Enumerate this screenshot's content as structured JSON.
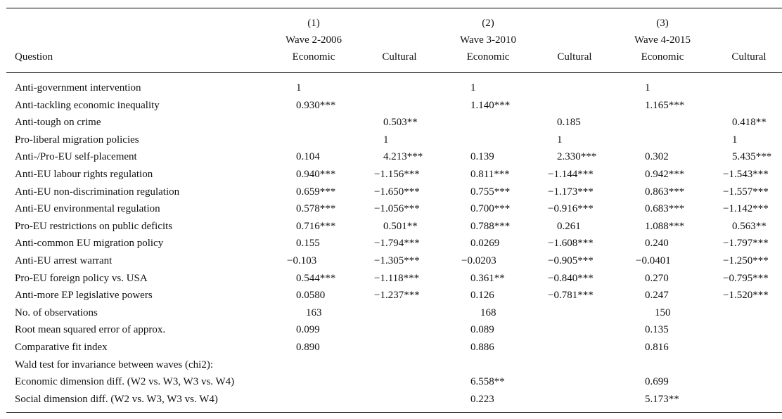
{
  "table": {
    "header": {
      "question_label": "Question",
      "groups": [
        {
          "number": "(1)",
          "wave": "Wave 2-2006"
        },
        {
          "number": "(2)",
          "wave": "Wave 3-2010"
        },
        {
          "number": "(3)",
          "wave": "Wave 4-2015"
        }
      ],
      "subcolumns": [
        "Economic",
        "Cultural",
        "Economic",
        "Cultural",
        "Economic",
        "Cultural"
      ]
    },
    "rows": [
      {
        "label": "Anti-government intervention",
        "cells": [
          "1",
          "",
          "1",
          "",
          "1",
          ""
        ]
      },
      {
        "label": "Anti-tackling economic inequality",
        "cells": [
          "0.930***",
          "",
          "1.140***",
          "",
          "1.165***",
          ""
        ]
      },
      {
        "label": "Anti-tough on crime",
        "cells": [
          "",
          "0.503**",
          "",
          "0.185",
          "",
          "0.418**"
        ]
      },
      {
        "label": "Pro-liberal migration policies",
        "cells": [
          "",
          "1",
          "",
          "1",
          "",
          "1"
        ]
      },
      {
        "label": "Anti-/Pro-EU self-placement",
        "cells": [
          "0.104",
          "4.213***",
          "0.139",
          "2.330***",
          "0.302",
          "5.435***"
        ]
      },
      {
        "label": "Anti-EU labour rights regulation",
        "cells": [
          "0.940***",
          "−1.156***",
          "0.811***",
          "−1.144***",
          "0.942***",
          "−1.543***"
        ]
      },
      {
        "label": "Anti-EU non-discrimination regulation",
        "cells": [
          "0.659***",
          "−1.650***",
          "0.755***",
          "−1.173***",
          "0.863***",
          "−1.557***"
        ]
      },
      {
        "label": "Anti-EU environmental regulation",
        "cells": [
          "0.578***",
          "−1.056***",
          "0.700***",
          "−0.916***",
          "0.683***",
          "−1.142***"
        ]
      },
      {
        "label": "Pro-EU restrictions on public deficits",
        "cells": [
          "0.716***",
          "0.501**",
          "0.788***",
          "0.261",
          "1.088***",
          "0.563**"
        ]
      },
      {
        "label": "Anti-common EU migration policy",
        "cells": [
          "0.155",
          "−1.794***",
          "0.0269",
          "−1.608***",
          "0.240",
          "−1.797***"
        ]
      },
      {
        "label": "Anti-EU arrest warrant",
        "cells": [
          "−0.103",
          "−1.305***",
          "−0.0203",
          "−0.905***",
          "−0.0401",
          "−1.250***"
        ]
      },
      {
        "label": "Pro-EU foreign policy vs. USA",
        "cells": [
          "0.544***",
          "−1.118***",
          "0.361**",
          "−0.840***",
          "0.270",
          "−0.795***"
        ]
      },
      {
        "label": "Anti-more EP legislative powers",
        "cells": [
          "0.0580",
          "−1.237***",
          "0.126",
          "−0.781***",
          "0.247",
          "−1.520***"
        ]
      }
    ],
    "stats": [
      {
        "label": "No. of observations",
        "cells": [
          "163",
          "",
          "168",
          "",
          "150",
          ""
        ]
      },
      {
        "label": "Root mean squared error of approx.",
        "cells": [
          "0.099",
          "",
          "0.089",
          "",
          "0.135",
          ""
        ]
      },
      {
        "label": "Comparative fit index",
        "cells": [
          "0.890",
          "",
          "0.886",
          "",
          "0.816",
          ""
        ]
      },
      {
        "label": "Wald test for invariance between waves (chi2):",
        "cells": [
          "",
          "",
          "",
          "",
          "",
          ""
        ]
      },
      {
        "label": "Economic dimension diff. (W2 vs. W3, W3 vs. W4)",
        "cells": [
          "",
          "",
          "6.558**",
          "",
          "0.699",
          ""
        ]
      },
      {
        "label": "Social dimension diff. (W2 vs. W3, W3 vs. W4)",
        "cells": [
          "",
          "",
          "0.223",
          "",
          "5.173**",
          ""
        ]
      }
    ]
  }
}
